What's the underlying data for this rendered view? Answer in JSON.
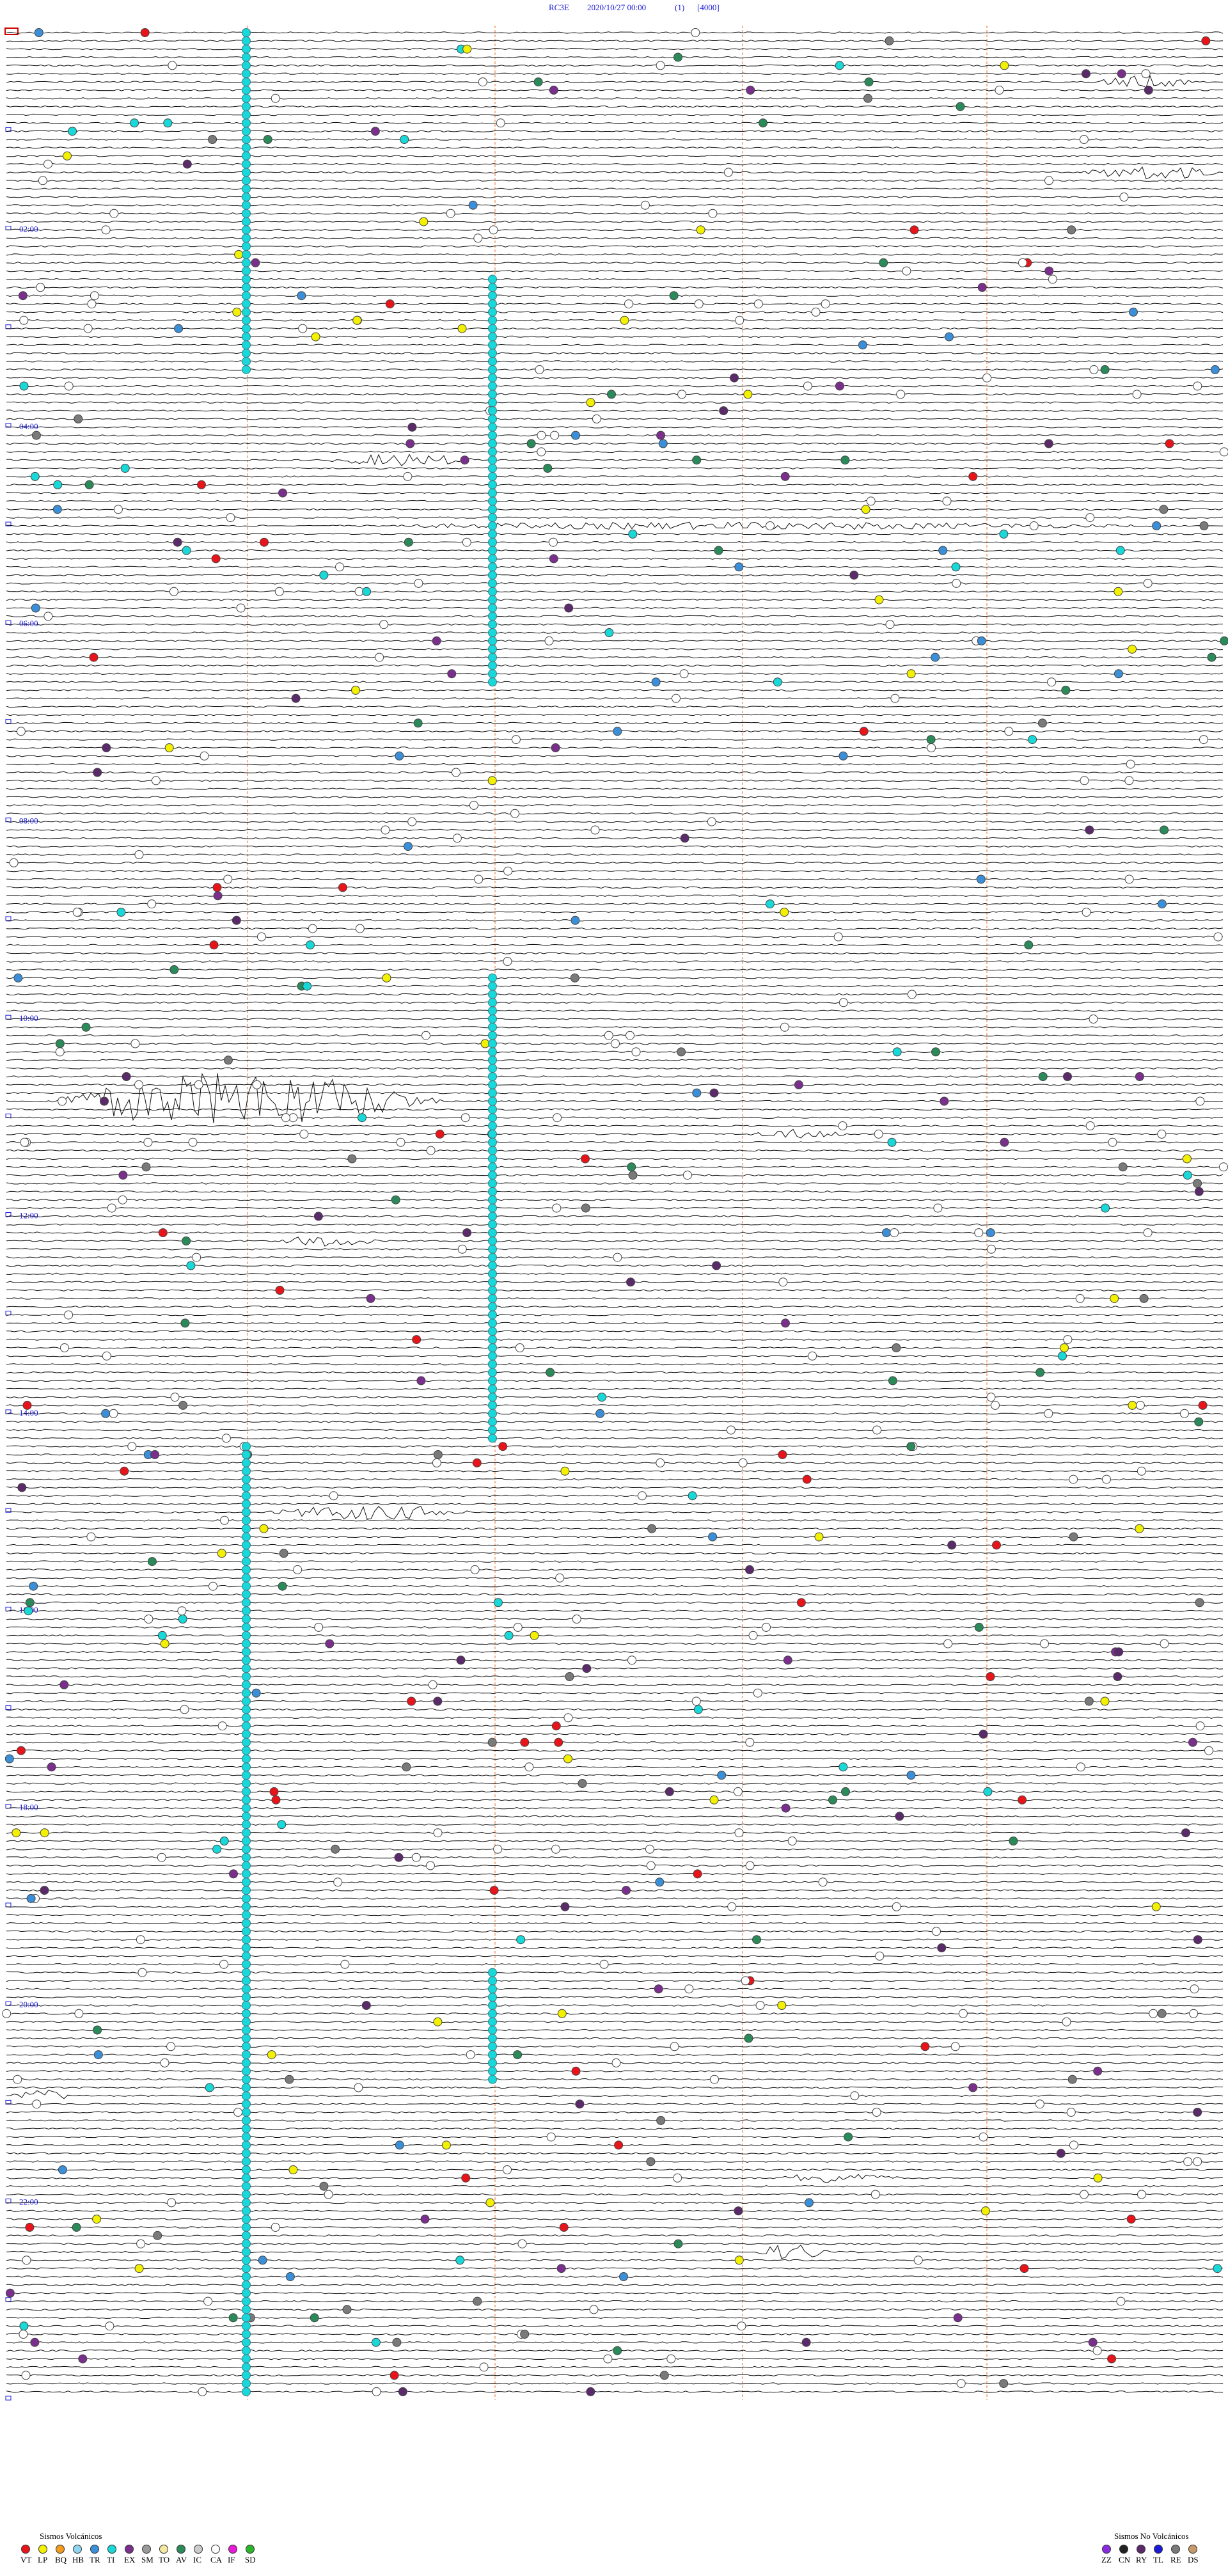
{
  "header": {
    "station": "RC3E",
    "datetime": "2020/10/27 00:00",
    "index": "(1)",
    "scale": "[4000]"
  },
  "hour_labels": [
    "02:00",
    "04:00",
    "06:00",
    "08:00",
    "10:00",
    "12:00",
    "14:00",
    "16:00",
    "18:00",
    "20:00",
    "22:00"
  ],
  "legend_volcanic": {
    "title": "Sismos Volcánicos",
    "items": [
      {
        "code": "VT",
        "color": "#e8141a"
      },
      {
        "code": "LP",
        "color": "#f3f000"
      },
      {
        "code": "BQ",
        "color": "#f39c1b"
      },
      {
        "code": "HB",
        "color": "#8fd3f0"
      },
      {
        "code": "TR",
        "color": "#3b8fd8"
      },
      {
        "code": "TI",
        "color": "#18d8d8"
      },
      {
        "code": "EX",
        "color": "#7a2f8c"
      },
      {
        "code": "SM",
        "color": "#9a9a9a"
      },
      {
        "code": "TO",
        "color": "#f3e9a0"
      },
      {
        "code": "AV",
        "color": "#2a8a5a"
      },
      {
        "code": "IC",
        "color": "#cccccc"
      },
      {
        "code": "CA",
        "color": "#ffffff"
      },
      {
        "code": "IF",
        "color": "#e81ad8"
      },
      {
        "code": "SD",
        "color": "#2bb52b"
      }
    ]
  },
  "legend_nonvolcanic": {
    "title": "Sismos No Volcánicos",
    "items": [
      {
        "code": "ZZ",
        "color": "#8a2be2"
      },
      {
        "code": "CN",
        "color": "#222222"
      },
      {
        "code": "RY",
        "color": "#5a2a6a"
      },
      {
        "code": "TL",
        "color": "#1a1ad8"
      },
      {
        "code": "RE",
        "color": "#7a7a7a"
      },
      {
        "code": "DS",
        "color": "#c89a6a"
      }
    ]
  }
}
